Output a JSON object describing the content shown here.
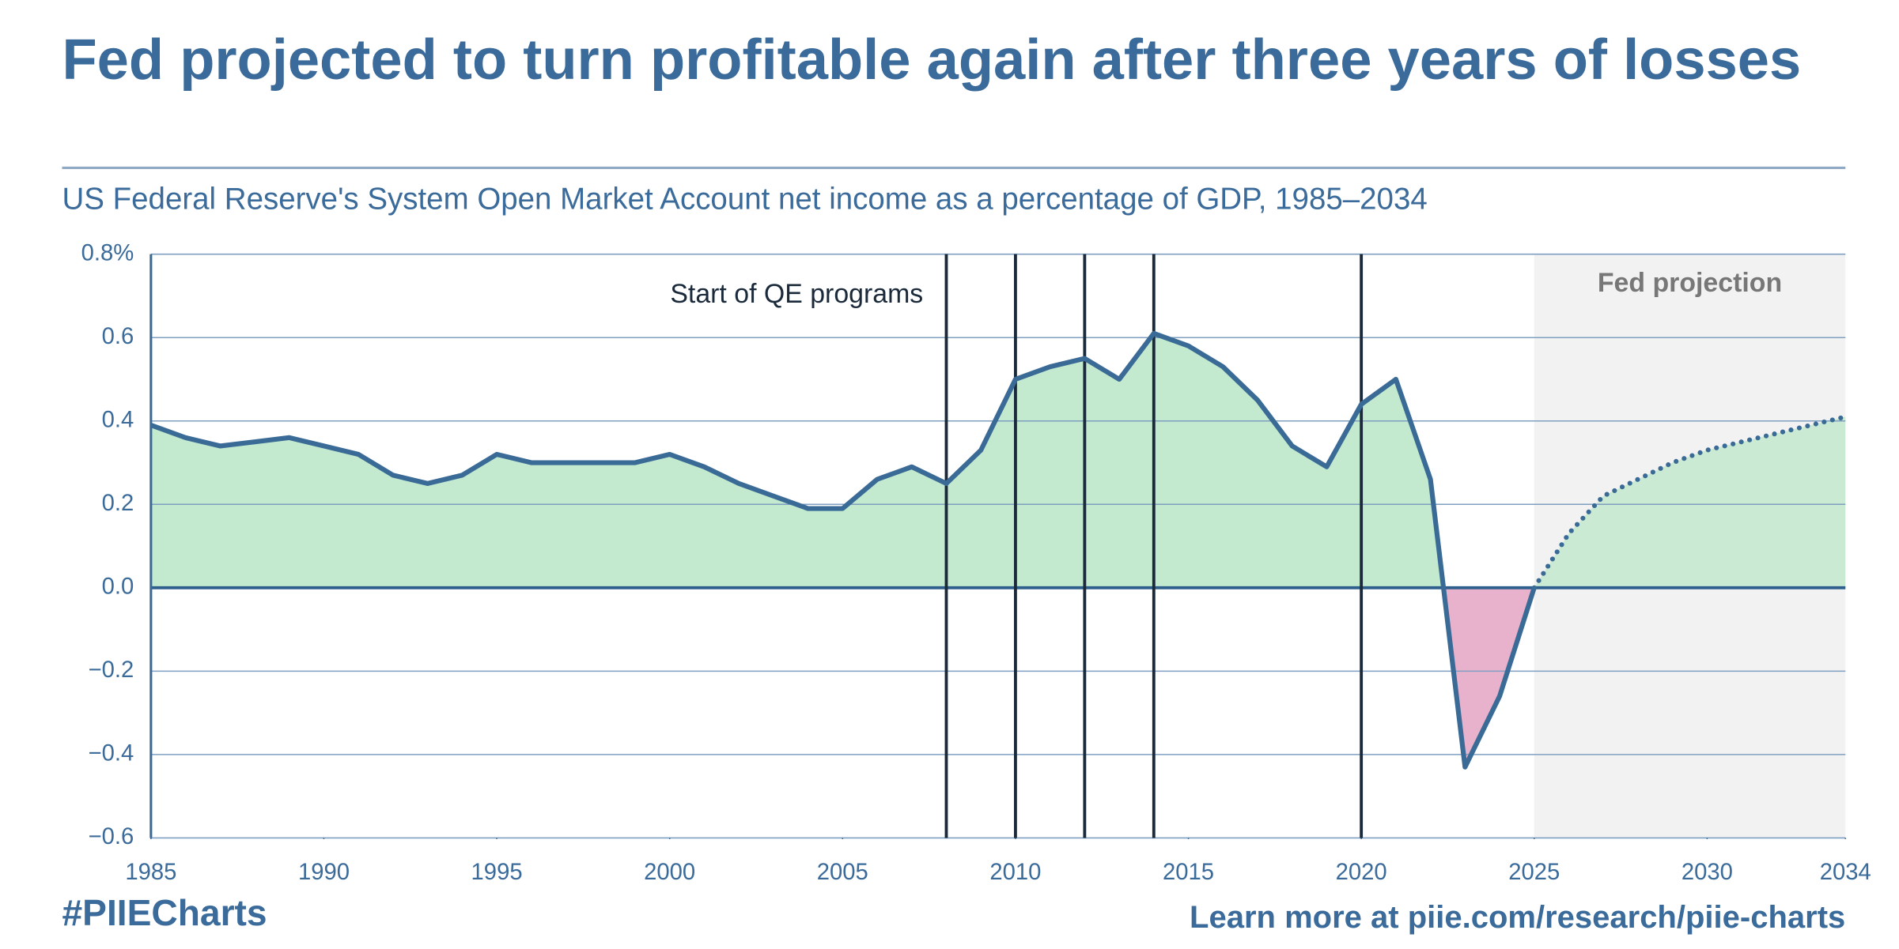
{
  "chart_data": {
    "type": "area-line",
    "title": "Fed projected to turn profitable again after three years of losses",
    "subtitle": "US Federal Reserve's System Open Market Account net income as a percentage of GDP, 1985–2034",
    "x": [
      1985,
      1986,
      1987,
      1988,
      1989,
      1990,
      1991,
      1992,
      1993,
      1994,
      1995,
      1996,
      1997,
      1998,
      1999,
      2000,
      2001,
      2002,
      2003,
      2004,
      2005,
      2006,
      2007,
      2008,
      2009,
      2010,
      2011,
      2012,
      2013,
      2014,
      2015,
      2016,
      2017,
      2018,
      2019,
      2020,
      2021,
      2022,
      2023,
      2024,
      2025,
      2026,
      2027,
      2028,
      2029,
      2030,
      2031,
      2032,
      2033,
      2034
    ],
    "series": [
      {
        "color": "#3a6a96",
        "style": "solid",
        "values": [
          0.39,
          0.36,
          0.34,
          0.35,
          0.36,
          0.34,
          0.32,
          0.27,
          0.25,
          0.27,
          0.32,
          0.3,
          0.3,
          0.3,
          0.3,
          0.32,
          0.29,
          0.25,
          0.22,
          0.19,
          0.19,
          0.26,
          0.29,
          0.25,
          0.33,
          0.5,
          0.53,
          0.55,
          0.5,
          0.61,
          0.58,
          0.53,
          0.45,
          0.34,
          0.29,
          0.44,
          0.5,
          0.26,
          -0.43,
          -0.26,
          0.0,
          null,
          null,
          null,
          null,
          null,
          null,
          null,
          null,
          null
        ]
      },
      {
        "color": "#3a6a96",
        "style": "dotted",
        "values": [
          null,
          null,
          null,
          null,
          null,
          null,
          null,
          null,
          null,
          null,
          null,
          null,
          null,
          null,
          null,
          null,
          null,
          null,
          null,
          null,
          null,
          null,
          null,
          null,
          null,
          null,
          null,
          null,
          null,
          null,
          null,
          null,
          null,
          null,
          null,
          null,
          null,
          null,
          null,
          null,
          0.0,
          0.13,
          0.22,
          0.26,
          0.3,
          0.33,
          0.35,
          0.37,
          0.39,
          0.41
        ]
      }
    ],
    "fill_positive": "#c3e9cf",
    "fill_negative": "#e9b2cc",
    "xlim": [
      1985,
      2034
    ],
    "xticks": [
      1985,
      1990,
      1995,
      2000,
      2005,
      2010,
      2015,
      2020,
      2025,
      2030,
      2034
    ],
    "ylim": [
      -0.6,
      0.8
    ],
    "yticks": [
      {
        "value": -0.6,
        "label": "−0.6"
      },
      {
        "value": -0.4,
        "label": "−0.4"
      },
      {
        "value": -0.2,
        "label": "−0.2"
      },
      {
        "value": 0,
        "label": "0.0"
      },
      0.2,
      0.4,
      0.6,
      {
        "value": 0.8,
        "label": "0.8%"
      }
    ],
    "grid": true,
    "qe_lines": {
      "label": "Start of QE programs",
      "x": [
        2008,
        2010,
        2012,
        2014,
        2020
      ],
      "color": "#1b2a3a"
    },
    "shaded_region": {
      "label": "Fed projection",
      "from": 2025,
      "to": 2034,
      "color": "#f2f2f2"
    },
    "footer_left": "#PIIECharts",
    "footer_right": "Learn more at piie.com/research/piie-charts"
  }
}
